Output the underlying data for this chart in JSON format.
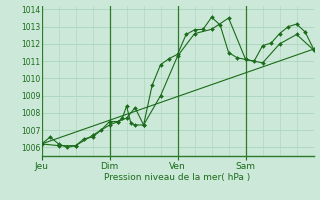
{
  "xlabel": "Pression niveau de la mer( hPa )",
  "bg_color": "#cce8d8",
  "grid_color": "#b0d8c0",
  "line_color": "#1a6b1a",
  "marker_color": "#1a6b1a",
  "ylim": [
    1005.5,
    1014.2
  ],
  "yticks": [
    1006,
    1007,
    1008,
    1009,
    1010,
    1011,
    1012,
    1013,
    1014
  ],
  "day_labels": [
    "Jeu",
    "Dim",
    "Ven",
    "Sam"
  ],
  "day_positions": [
    0,
    32,
    64,
    96
  ],
  "xlim": [
    0,
    128
  ],
  "series1_x": [
    0,
    4,
    8,
    12,
    16,
    20,
    24,
    28,
    32,
    36,
    38,
    40,
    42,
    44,
    48,
    52,
    56,
    60,
    64,
    68,
    72,
    76,
    80,
    84,
    88,
    92,
    96,
    100,
    104,
    108,
    112,
    116,
    120,
    124,
    128
  ],
  "series1_y": [
    1006.2,
    1006.6,
    1006.2,
    1006.0,
    1006.1,
    1006.5,
    1006.6,
    1007.0,
    1007.5,
    1007.5,
    1007.7,
    1008.4,
    1007.4,
    1007.3,
    1007.3,
    1009.6,
    1010.8,
    1011.15,
    1011.4,
    1012.55,
    1012.82,
    1012.85,
    1013.55,
    1013.1,
    1011.5,
    1011.2,
    1011.1,
    1011.0,
    1011.9,
    1012.05,
    1012.6,
    1013.0,
    1013.15,
    1012.7,
    1011.7
  ],
  "series2_x": [
    0,
    8,
    16,
    24,
    32,
    36,
    40,
    44,
    48,
    56,
    64,
    72,
    80,
    88,
    96,
    104,
    112,
    120,
    128
  ],
  "series2_y": [
    1006.2,
    1006.1,
    1006.1,
    1006.7,
    1007.3,
    1007.5,
    1007.7,
    1008.3,
    1007.3,
    1009.0,
    1011.3,
    1012.6,
    1012.85,
    1013.5,
    1011.1,
    1010.9,
    1012.0,
    1012.55,
    1011.65
  ],
  "series3_x": [
    0,
    128
  ],
  "series3_y": [
    1006.2,
    1011.7
  ]
}
